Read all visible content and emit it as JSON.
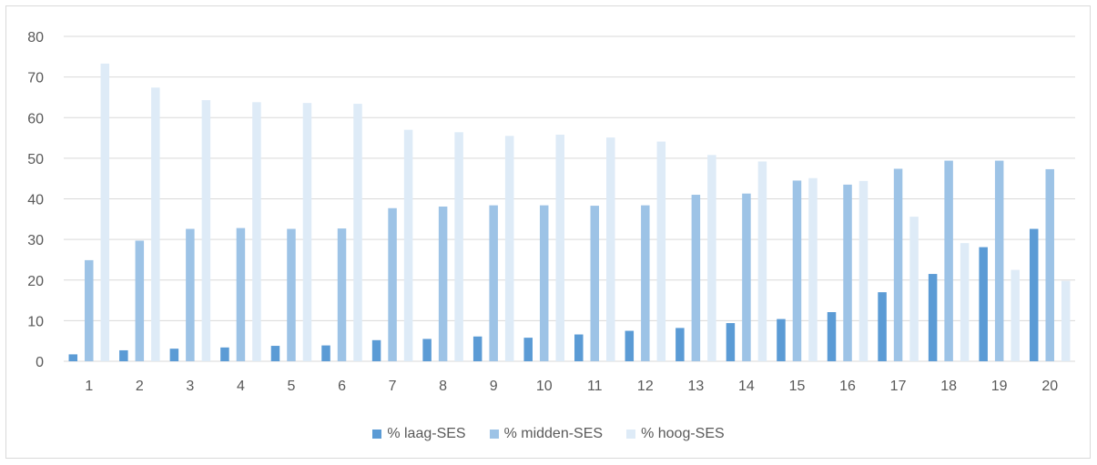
{
  "chart_data": {
    "type": "bar",
    "categories": [
      "1",
      "2",
      "3",
      "4",
      "5",
      "6",
      "7",
      "8",
      "9",
      "10",
      "11",
      "12",
      "13",
      "14",
      "15",
      "16",
      "17",
      "18",
      "19",
      "20"
    ],
    "series": [
      {
        "name": "% laag-SES",
        "color": "#5b9bd5",
        "values": [
          1.7,
          2.7,
          3.1,
          3.4,
          3.8,
          3.9,
          5.2,
          5.5,
          6.1,
          5.8,
          6.6,
          7.5,
          8.2,
          9.4,
          10.4,
          12.1,
          17.0,
          21.5,
          28.1,
          32.6
        ]
      },
      {
        "name": "% midden-SES",
        "color": "#9dc3e6",
        "values": [
          24.9,
          29.7,
          32.6,
          32.8,
          32.6,
          32.7,
          37.7,
          38.1,
          38.4,
          38.4,
          38.3,
          38.4,
          41.0,
          41.3,
          44.5,
          43.5,
          47.4,
          49.4,
          49.4,
          47.3
        ]
      },
      {
        "name": "% hoog-SES",
        "color": "#deebf7",
        "values": [
          73.3,
          67.4,
          64.3,
          63.8,
          63.6,
          63.4,
          57.0,
          56.4,
          55.5,
          55.8,
          55.1,
          54.1,
          50.8,
          49.2,
          45.1,
          44.4,
          35.6,
          29.1,
          22.5,
          19.8
        ]
      }
    ],
    "ylim": [
      0,
      80
    ],
    "yticks": [
      0,
      10,
      20,
      30,
      40,
      50,
      60,
      70,
      80
    ],
    "grid": true,
    "legend_position": "bottom",
    "gridline_color": "#d9d9d9",
    "axis_label_color": "#595959"
  }
}
